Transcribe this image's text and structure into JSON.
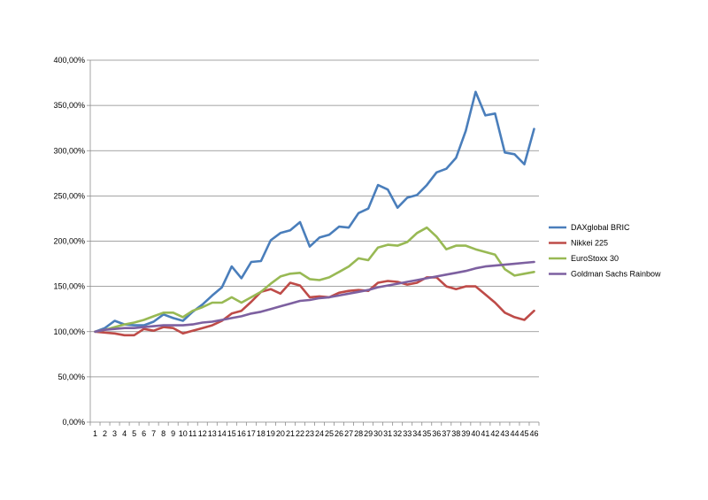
{
  "chart_data": {
    "type": "line",
    "title": "",
    "xlabel": "",
    "ylabel": "",
    "ylim": [
      0,
      400
    ],
    "y_ticks": [
      "0,00%",
      "50,00%",
      "100,00%",
      "150,00%",
      "200,00%",
      "250,00%",
      "300,00%",
      "350,00%",
      "400,00%"
    ],
    "x": [
      1,
      2,
      3,
      4,
      5,
      6,
      7,
      8,
      9,
      10,
      11,
      12,
      13,
      14,
      15,
      16,
      17,
      18,
      19,
      20,
      21,
      22,
      23,
      24,
      25,
      26,
      27,
      28,
      29,
      30,
      31,
      32,
      33,
      34,
      35,
      36,
      37,
      38,
      39,
      40,
      41,
      42,
      43,
      44,
      45,
      46
    ],
    "grid": "horizontal",
    "legend_position": "right",
    "series": [
      {
        "name": "DAXglobal BRIC",
        "color": "#4A7EBB",
        "values": [
          100,
          104,
          112,
          108,
          107,
          107,
          111,
          119,
          115,
          112,
          122,
          130,
          140,
          149,
          172,
          159,
          177,
          178,
          201,
          209,
          212,
          221,
          194,
          204,
          207,
          216,
          215,
          231,
          236,
          262,
          257,
          237,
          248,
          251,
          262,
          276,
          280,
          292,
          322,
          365,
          339,
          341,
          298,
          296,
          285,
          324
        ]
      },
      {
        "name": "Nikkei 225",
        "color": "#BE4B48",
        "values": [
          100,
          99,
          98,
          96,
          96,
          103,
          101,
          105,
          104,
          98,
          101,
          104,
          107,
          112,
          120,
          123,
          133,
          144,
          147,
          142,
          154,
          151,
          138,
          139,
          138,
          143,
          145,
          146,
          145,
          154,
          156,
          155,
          152,
          154,
          160,
          160,
          150,
          147,
          150,
          150,
          141,
          132,
          121,
          116,
          113,
          123
        ]
      },
      {
        "name": "EuroStoxx 30",
        "color": "#98B954",
        "values": [
          100,
          102,
          105,
          108,
          110,
          113,
          117,
          121,
          121,
          116,
          123,
          127,
          132,
          132,
          138,
          132,
          138,
          144,
          153,
          161,
          164,
          165,
          158,
          157,
          160,
          166,
          172,
          181,
          179,
          193,
          196,
          195,
          199,
          209,
          215,
          205,
          191,
          195,
          195,
          191,
          188,
          185,
          169,
          162,
          164,
          166
        ]
      },
      {
        "name": "Goldman Sachs Rainbow",
        "color": "#7D60A0",
        "values": [
          100,
          102,
          103,
          104,
          104,
          105,
          106,
          107,
          107,
          107,
          108,
          110,
          111,
          113,
          115,
          117,
          120,
          122,
          125,
          128,
          131,
          134,
          135,
          137,
          138,
          140,
          142,
          144,
          146,
          149,
          151,
          153,
          155,
          157,
          159,
          161,
          163,
          165,
          167,
          170,
          172,
          173,
          174,
          175,
          176,
          177
        ]
      }
    ]
  }
}
